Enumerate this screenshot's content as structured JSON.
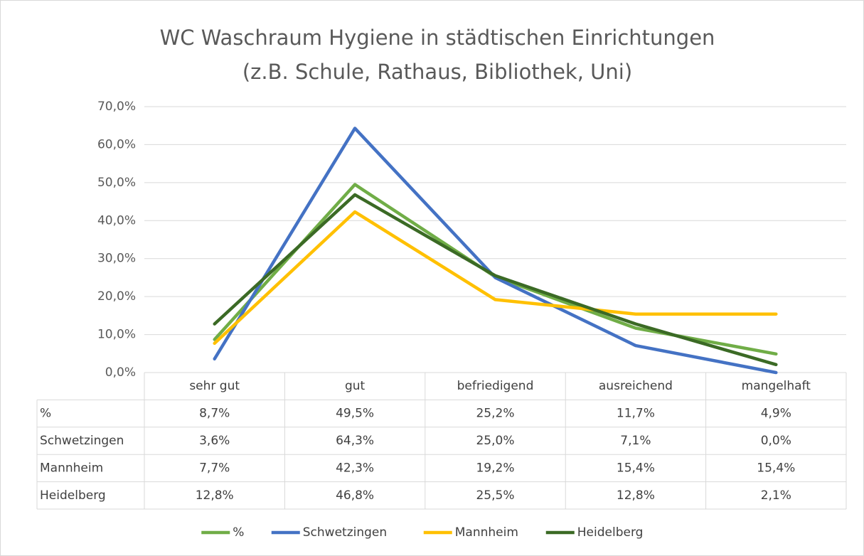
{
  "chart_data": {
    "type": "line",
    "title": "WC Waschraum Hygiene in städtischen Einrichtungen",
    "subtitle": "(z.B. Schule, Rathaus, Bibliothek, Uni)",
    "categories": [
      "sehr gut",
      "gut",
      "befriedigend",
      "ausreichend",
      "mangelhaft"
    ],
    "series": [
      {
        "name": "%",
        "color": "#70ad47",
        "values": [
          8.7,
          49.5,
          25.2,
          11.7,
          4.9
        ],
        "value_labels": [
          "8,7%",
          "49,5%",
          "25,2%",
          "11,7%",
          "4,9%"
        ]
      },
      {
        "name": "Schwetzingen",
        "color": "#4472c4",
        "values": [
          3.6,
          64.3,
          25.0,
          7.1,
          0.0
        ],
        "value_labels": [
          "3,6%",
          "64,3%",
          "25,0%",
          "7,1%",
          "0,0%"
        ]
      },
      {
        "name": "Mannheim",
        "color": "#ffc000",
        "values": [
          7.7,
          42.3,
          19.2,
          15.4,
          15.4
        ],
        "value_labels": [
          "7,7%",
          "42,3%",
          "19,2%",
          "15,4%",
          "15,4%"
        ]
      },
      {
        "name": "Heidelberg",
        "color": "#3b6a25",
        "values": [
          12.8,
          46.8,
          25.5,
          12.8,
          2.1
        ],
        "value_labels": [
          "12,8%",
          "46,8%",
          "25,5%",
          "12,8%",
          "2,1%"
        ]
      }
    ],
    "ylim": [
      0,
      70
    ],
    "yticks": [
      {
        "value": 0,
        "label": "0,0%"
      },
      {
        "value": 10,
        "label": "10,0%"
      },
      {
        "value": 20,
        "label": "20,0%"
      },
      {
        "value": 30,
        "label": "30,0%"
      },
      {
        "value": 40,
        "label": "40,0%"
      },
      {
        "value": 50,
        "label": "50,0%"
      },
      {
        "value": 60,
        "label": "60,0%"
      },
      {
        "value": 70,
        "label": "70,0%"
      }
    ],
    "grid": true,
    "legend": "bottom",
    "data_table": true
  }
}
